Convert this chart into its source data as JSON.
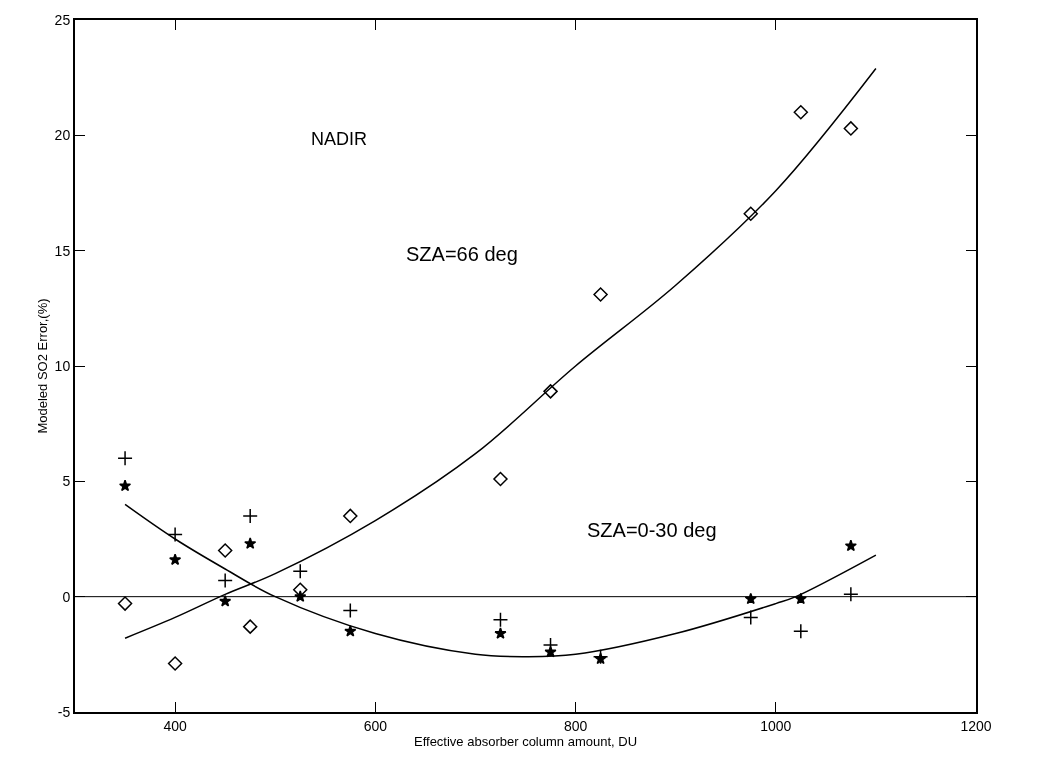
{
  "chart_data": {
    "type": "scatter",
    "xlabel": "Effective absorber column amount, DU",
    "ylabel": "Modeled SO2 Error,(%)",
    "x": [
      350,
      400,
      450,
      475,
      525,
      575,
      725,
      775,
      825,
      975,
      1025,
      1075
    ],
    "series": [
      {
        "marker": "diamond",
        "color": "#000000",
        "values": [
          -0.3,
          -2.9,
          2.0,
          -1.3,
          0.3,
          3.5,
          5.1,
          8.9,
          13.1,
          16.6,
          21.0,
          20.3
        ]
      },
      {
        "marker": "cross",
        "color": "#000000",
        "values": [
          6.0,
          2.7,
          0.7,
          3.5,
          1.1,
          -0.6,
          -1.0,
          -2.1,
          -2.6,
          -0.9,
          -1.5,
          0.1
        ]
      },
      {
        "marker": "star",
        "color": "#000000",
        "values": [
          4.8,
          1.6,
          -0.2,
          2.3,
          0.0,
          -1.5,
          -1.6,
          -2.4,
          -2.7,
          -0.1,
          -0.1,
          2.2
        ]
      },
      {
        "type": "line",
        "color": "#000000",
        "x": [
          350,
          400,
          450,
          500,
          600,
          700,
          800,
          900,
          1000,
          1100
        ],
        "values": [
          -1.8,
          -0.9,
          0.1,
          1.0,
          3.3,
          6.2,
          10.0,
          13.5,
          17.6,
          22.9
        ]
      },
      {
        "type": "line",
        "color": "#000000",
        "x": [
          350,
          400,
          450,
          500,
          600,
          700,
          750,
          800,
          900,
          1000,
          1020,
          1100
        ],
        "values": [
          4.0,
          2.5,
          1.2,
          0.0,
          -1.6,
          -2.5,
          -2.6,
          -2.5,
          -1.6,
          -0.3,
          0.0,
          1.8
        ]
      }
    ],
    "annotations": [
      "NADIR",
      "SZA=66 deg",
      "SZA=0-30 deg"
    ],
    "ref_lines": [
      {
        "axis": "y",
        "value": 0,
        "color": "#000000"
      }
    ],
    "xlim": [
      300,
      1200
    ],
    "xticks": [
      400,
      600,
      800,
      1000,
      1200
    ],
    "ylim": [
      -5,
      25
    ],
    "yticks": [
      -5,
      0,
      5,
      10,
      15,
      20,
      25
    ],
    "legend": false
  }
}
